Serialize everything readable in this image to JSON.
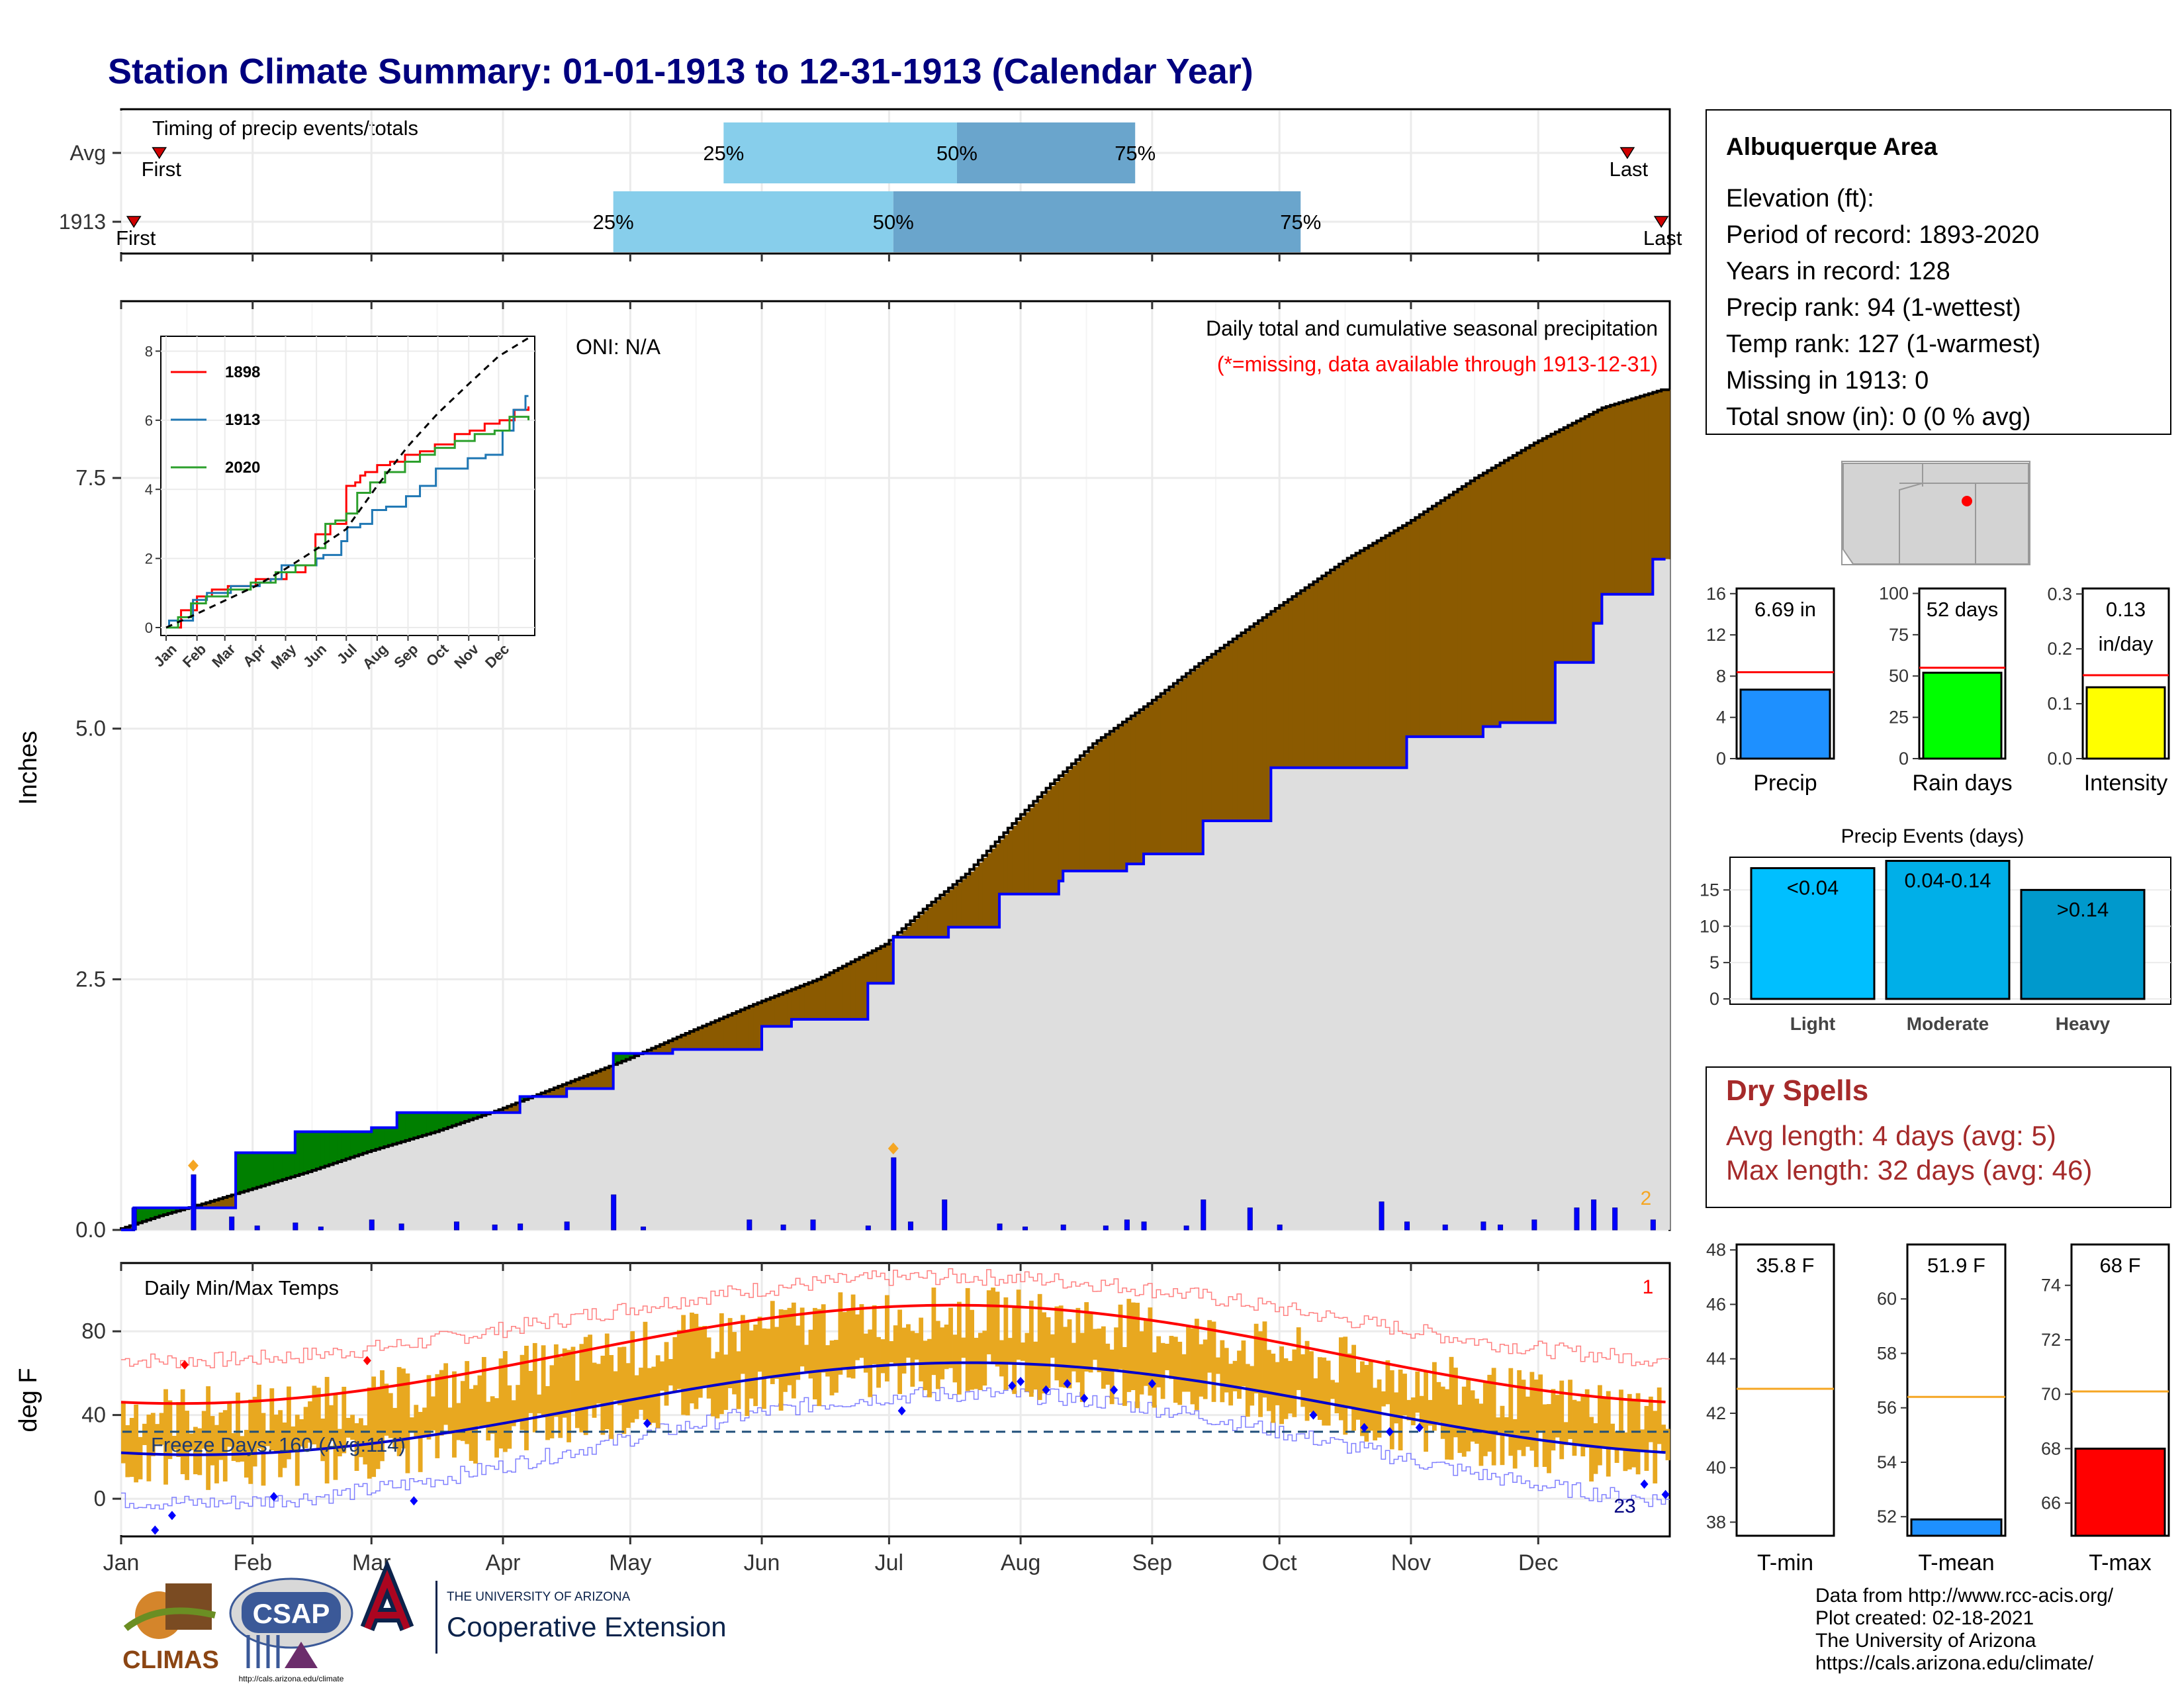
{
  "title": "Station Climate Summary: 01-01-1913 to 12-31-1913 (Calendar Year)",
  "months": [
    "Jan",
    "Feb",
    "Mar",
    "Apr",
    "May",
    "Jun",
    "Jul",
    "Aug",
    "Sep",
    "Oct",
    "Nov",
    "Dec"
  ],
  "timing": {
    "label": "Timing of precip events/totals",
    "rows": [
      {
        "name": "Avg",
        "first_day": 9,
        "last_day": 355,
        "p25": 142,
        "p50": 197,
        "p75": 239,
        "first": "First",
        "last": "Last"
      },
      {
        "name": "1913",
        "first_day": 3,
        "last_day": 363,
        "p25": 116,
        "p50": 182,
        "p75": 278,
        "first": "First",
        "last": "Last"
      }
    ],
    "pct_labels": [
      "25%",
      "50%",
      "75%"
    ]
  },
  "colors": {
    "title": "#00007f",
    "light_blue": "#87ceeb",
    "mid_blue": "#6aa5cc",
    "brown": "#8b5a00",
    "green": "#007f00",
    "grey_fill": "#dedede",
    "blue_line": "#0000ff",
    "orange": "#f5a623",
    "tmax_line": "#ff0000",
    "tmin_line": "#0000cc",
    "temp_bar": "#e8a820"
  },
  "chart_data": [
    {
      "type": "area",
      "name": "cumulative_precip",
      "note": "Daily total and cumulative seasonal precipitation",
      "missing_note": "(*=missing, data available through 1913-12-31)",
      "oni": "ONI: N/A",
      "ylabel": "Inches",
      "ylim": [
        0,
        9.25
      ],
      "yticks": [
        0.0,
        2.5,
        5.0,
        7.5
      ],
      "ytick_labels": [
        "0.0",
        "2.5",
        "5.0",
        "7.5"
      ],
      "corner_count": "2",
      "avg_cumulative": {
        "x": [
          0,
          10,
          20,
          31,
          45,
          59,
          75,
          90,
          105,
          120,
          135,
          150,
          165,
          181,
          190,
          200,
          212,
          220,
          230,
          243,
          255,
          273,
          290,
          304,
          320,
          334,
          350,
          364
        ],
        "y": [
          0,
          0.14,
          0.26,
          0.4,
          0.58,
          0.78,
          0.98,
          1.2,
          1.45,
          1.7,
          1.98,
          2.25,
          2.5,
          2.85,
          3.2,
          3.55,
          4.1,
          4.45,
          4.85,
          5.25,
          5.65,
          6.2,
          6.7,
          7.05,
          7.5,
          7.85,
          8.2,
          8.38
        ]
      },
      "year_cumulative": {
        "x": [
          0,
          3,
          17,
          27,
          41,
          59,
          65,
          90,
          94,
          105,
          116,
          130,
          151,
          158,
          176,
          182,
          195,
          207,
          215,
          221,
          222,
          237,
          241,
          255,
          271,
          294,
          303,
          321,
          325,
          338,
          347,
          349,
          361,
          364
        ],
        "y": [
          0,
          0.22,
          0.22,
          0.77,
          0.98,
          1.02,
          1.17,
          1.17,
          1.33,
          1.41,
          1.76,
          1.8,
          2.03,
          2.1,
          2.46,
          2.92,
          3.02,
          3.35,
          3.35,
          3.48,
          3.58,
          3.65,
          3.75,
          4.08,
          4.61,
          4.61,
          4.92,
          5.02,
          5.06,
          5.66,
          6.05,
          6.34,
          6.69,
          6.69
        ]
      },
      "daily_bars": {
        "x": [
          3,
          17,
          26,
          32,
          41,
          47,
          59,
          66,
          79,
          88,
          94,
          105,
          116,
          123,
          148,
          156,
          163,
          176,
          182,
          186,
          194,
          207,
          213,
          222,
          232,
          237,
          241,
          251,
          255,
          266,
          273,
          297,
          303,
          312,
          321,
          325,
          333,
          343,
          347,
          352,
          361
        ],
        "y": [
          0.22,
          0.55,
          0.13,
          0.04,
          0.07,
          0.03,
          0.1,
          0.06,
          0.08,
          0.05,
          0.06,
          0.08,
          0.35,
          0.03,
          0.1,
          0.05,
          0.1,
          0.04,
          0.72,
          0.08,
          0.3,
          0.06,
          0.03,
          0.05,
          0.04,
          0.1,
          0.08,
          0.04,
          0.3,
          0.22,
          0.05,
          0.28,
          0.08,
          0.05,
          0.08,
          0.05,
          0.1,
          0.22,
          0.3,
          0.22,
          0.1
        ]
      },
      "missing_markers_x": [
        17,
        182
      ]
    },
    {
      "type": "line",
      "name": "inset_cumulative",
      "ylim": [
        0,
        8.2
      ],
      "yticks": [
        0,
        2,
        4,
        6,
        8
      ],
      "ytick_labels": [
        "0",
        "2",
        "4",
        "6",
        "8"
      ],
      "series": [
        {
          "name": "1898",
          "color": "#ff0000",
          "x": [
            0,
            15,
            31,
            46,
            62,
            90,
            121,
            140,
            150,
            165,
            181,
            190,
            195,
            200,
            212,
            225,
            240,
            255,
            270,
            290,
            305,
            320,
            335,
            350,
            364
          ],
          "y": [
            0,
            0.5,
            0.9,
            1.1,
            1.2,
            1.4,
            1.6,
            1.8,
            2.7,
            3.0,
            4.1,
            4.2,
            4.4,
            4.5,
            4.7,
            4.8,
            5.0,
            5.1,
            5.3,
            5.6,
            5.7,
            5.9,
            6.0,
            6.3,
            6.4
          ]
        },
        {
          "name": "1913",
          "color": "#1f77b4",
          "x": [
            0,
            3,
            17,
            27,
            41,
            59,
            65,
            90,
            94,
            105,
            116,
            130,
            151,
            158,
            176,
            182,
            195,
            207,
            221,
            241,
            255,
            271,
            294,
            303,
            321,
            338,
            349,
            361,
            364
          ],
          "y": [
            0,
            0.2,
            0.2,
            0.8,
            1.0,
            1.0,
            1.2,
            1.2,
            1.3,
            1.4,
            1.8,
            1.8,
            2.0,
            2.1,
            2.5,
            2.9,
            3.0,
            3.4,
            3.5,
            3.8,
            4.1,
            4.6,
            4.6,
            4.9,
            5.0,
            5.7,
            6.3,
            6.7,
            6.7
          ]
        },
        {
          "name": "2020",
          "color": "#2ca02c",
          "x": [
            0,
            12,
            25,
            40,
            62,
            85,
            110,
            130,
            150,
            160,
            170,
            181,
            192,
            205,
            220,
            240,
            255,
            270,
            290,
            310,
            330,
            345,
            364
          ],
          "y": [
            0,
            0.3,
            0.7,
            0.9,
            1.1,
            1.3,
            1.6,
            1.8,
            2.3,
            3.0,
            3.1,
            3.3,
            3.9,
            4.2,
            4.5,
            4.8,
            5.0,
            5.2,
            5.4,
            5.6,
            5.7,
            6.1,
            6.0
          ]
        },
        {
          "name": "Avg",
          "color": "#000000",
          "dashed": true,
          "x": [
            0,
            31,
            59,
            90,
            120,
            150,
            181,
            212,
            243,
            273,
            304,
            334,
            364
          ],
          "y": [
            0,
            0.4,
            0.78,
            1.2,
            1.7,
            2.25,
            2.85,
            4.1,
            5.25,
            6.2,
            7.05,
            7.85,
            8.38
          ]
        }
      ],
      "xtick_labels": [
        "Jan",
        "Feb",
        "Mar",
        "Apr",
        "May",
        "Jun",
        "Jul",
        "Aug",
        "Sep",
        "Oct",
        "Nov",
        "Dec"
      ]
    },
    {
      "type": "bar",
      "name": "temps",
      "title": "Daily Min/Max Temps",
      "ylabel": "deg F",
      "ylim": [
        -18,
        112
      ],
      "yticks": [
        0,
        40,
        80
      ],
      "ytick_labels": [
        "0",
        "40",
        "80"
      ],
      "freeze_label": "Freeze Days: 160 (Avg:114)",
      "freeze_line": 32,
      "corner_max_count": "1",
      "corner_min_count": "23",
      "seed_note": "bars generated from seasonal curves below",
      "tmax_mean": {
        "amp": 23.5,
        "mean": 69,
        "peak_day": 196
      },
      "tmin_mean": {
        "amp": 22,
        "mean": 43,
        "peak_day": 200
      },
      "tmax_record": {
        "amp": 20,
        "mean": 86,
        "peak_day": 196
      },
      "tmin_record": {
        "amp": 26,
        "mean": 24,
        "peak_day": 200
      }
    },
    {
      "type": "bar",
      "name": "precip_compare",
      "panels": [
        {
          "label": "Precip",
          "value_label": "6.69 in",
          "value": 6.69,
          "avg": 8.38,
          "ylim": [
            0,
            16.5
          ],
          "yticks": [
            0,
            4,
            8,
            12,
            16
          ],
          "color": "#1e90ff"
        },
        {
          "label": "Rain days",
          "value_label": "52 days",
          "value": 52,
          "avg": 55,
          "ylim": [
            0,
            103
          ],
          "yticks": [
            0,
            25,
            50,
            75,
            100
          ],
          "color": "#00ff00"
        },
        {
          "label": "Intensity",
          "value_label": "0.13\nin/day",
          "value": 0.13,
          "avg": 0.152,
          "ylim": [
            0,
            0.31
          ],
          "yticks": [
            0.0,
            0.1,
            0.2,
            0.3
          ],
          "ytick_labels": [
            "0.0",
            "0.1",
            "0.2",
            "0.3"
          ],
          "color": "#ffff00"
        }
      ]
    },
    {
      "type": "bar",
      "name": "precip_events",
      "title": "Precip Events (days)",
      "categories": [
        "Light",
        "Moderate",
        "Heavy"
      ],
      "values": [
        18,
        19,
        15
      ],
      "bar_labels": [
        "<0.04",
        "0.04-0.14",
        ">0.14"
      ],
      "colors": [
        "#00bfff",
        "#00afe8",
        "#0099cc"
      ],
      "ylim": [
        0,
        19.5
      ],
      "yticks": [
        0,
        5,
        10,
        15
      ]
    },
    {
      "type": "bar",
      "name": "temp_compare",
      "panels": [
        {
          "label": "T-min",
          "value_label": "35.8 F",
          "value": 35.8,
          "avg": 42.9,
          "ylim": [
            37.5,
            48.2
          ],
          "yticks": [
            38,
            40,
            42,
            44,
            46,
            48
          ],
          "color": "#ffffff"
        },
        {
          "label": "T-mean",
          "value_label": "51.9 F",
          "value": 51.9,
          "avg": 56.4,
          "ylim": [
            51.3,
            62
          ],
          "yticks": [
            52,
            54,
            56,
            58,
            60
          ],
          "color": "#1e90ff"
        },
        {
          "label": "T-max",
          "value_label": "68 F",
          "value": 68,
          "avg": 70.1,
          "ylim": [
            64.8,
            75.5
          ],
          "yticks": [
            66,
            68,
            70,
            72,
            74
          ],
          "color": "#ff0000"
        }
      ]
    }
  ],
  "station": {
    "name": "Albuquerque Area",
    "lines": [
      "Elevation (ft):",
      "Period of record: 1893-2020",
      "Years in record: 128",
      "Precip rank: 94 (1-wettest)",
      "Temp rank: 127 (1-warmest)",
      "Missing in 1913: 0",
      "Total snow (in): 0 (0 % avg)"
    ]
  },
  "dry_spells": {
    "title": "Dry Spells",
    "avg_line": "Avg length: 4 days (avg: 5)",
    "max_line": "Max length: 32 days (avg: 46)"
  },
  "footer": {
    "lines": [
      "Data from http://www.rcc-acis.org/",
      "Plot created: 02-18-2021",
      "The University of Arizona",
      "https://cals.arizona.edu/climate/"
    ]
  },
  "logos": {
    "climas": "CLIMAS",
    "csap": "CSAP",
    "csap_url": "http://cals.arizona.edu/climate",
    "ua_small": "THE UNIVERSITY OF ARIZONA",
    "ua_big": "Cooperative Extension"
  }
}
